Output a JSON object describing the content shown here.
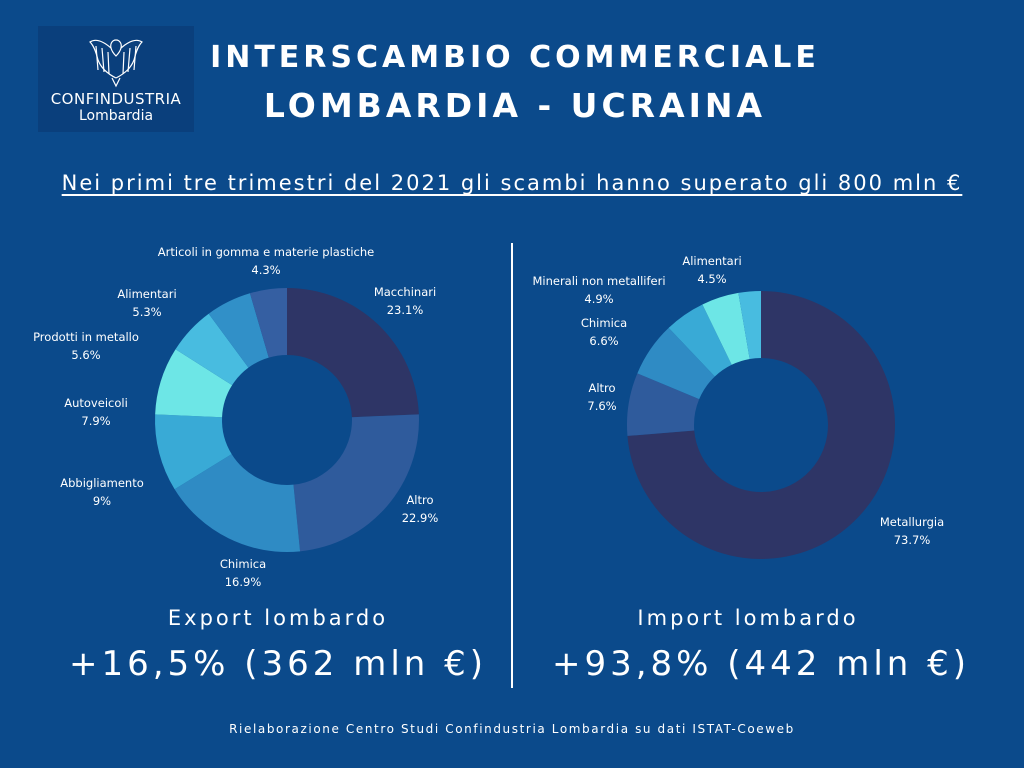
{
  "logo": {
    "line1": "CONFINDUSTRIA",
    "line2": "Lombardia",
    "icon": "eagle-emblem-icon"
  },
  "header": {
    "title_line1": "INTERSCAMBIO COMMERCIALE",
    "title_line2": "LOMBARDIA - UCRAINA"
  },
  "subtitle": "Nei primi tre trimestri del 2021 gli scambi hanno superato gli 800 mln €",
  "export": {
    "label": "Export lombardo",
    "value": "+16,5% (362 mln €)"
  },
  "import": {
    "label": "Import lombardo",
    "value": "+93,8% (442 mln €)"
  },
  "footer": "Rielaborazione Centro Studi Confindustria Lombardia su dati ISTAT-Coeweb",
  "colors": {
    "background": "#0b4a8b"
  },
  "chart_data": [
    {
      "type": "pie",
      "donut": true,
      "slices": [
        {
          "label": "Macchinari",
          "value": 23.1,
          "pct": "23.1%",
          "color": "#2e3566"
        },
        {
          "label": "Altro",
          "value": 22.9,
          "pct": "22.9%",
          "color": "#2f5b9c"
        },
        {
          "label": "Chimica",
          "value": 16.9,
          "pct": "16.9%",
          "color": "#2f8bc4"
        },
        {
          "label": "Abbigliamento",
          "value": 9,
          "pct": "9%",
          "color": "#39aad6"
        },
        {
          "label": "Autoveicoli",
          "value": 7.9,
          "pct": "7.9%",
          "color": "#6de6e6"
        },
        {
          "label": "Prodotti in metallo",
          "value": 5.6,
          "pct": "5.6%",
          "color": "#48bce0"
        },
        {
          "label": "Alimentari",
          "value": 5.3,
          "pct": "5.3%",
          "color": "#3190c8"
        },
        {
          "label": "Articoli in gomma e materie plastiche",
          "value": 4.3,
          "pct": "4.3%",
          "color": "#355fa2"
        }
      ]
    },
    {
      "type": "pie",
      "donut": true,
      "slices": [
        {
          "label": "Metallurgia",
          "value": 73.7,
          "pct": "73.7%",
          "color": "#2e3566"
        },
        {
          "label": "Altro",
          "value": 7.6,
          "pct": "7.6%",
          "color": "#2f5b9c"
        },
        {
          "label": "Chimica",
          "value": 6.6,
          "pct": "6.6%",
          "color": "#2f8bc4"
        },
        {
          "label": "Minerali non metalliferi",
          "value": 4.9,
          "pct": "4.9%",
          "color": "#39aad6"
        },
        {
          "label": "Alimentari",
          "value": 4.5,
          "pct": "4.5%",
          "color": "#6de6e6"
        },
        {
          "label": "",
          "value": 2.7,
          "pct": "",
          "color": "#48bce0"
        }
      ]
    }
  ]
}
